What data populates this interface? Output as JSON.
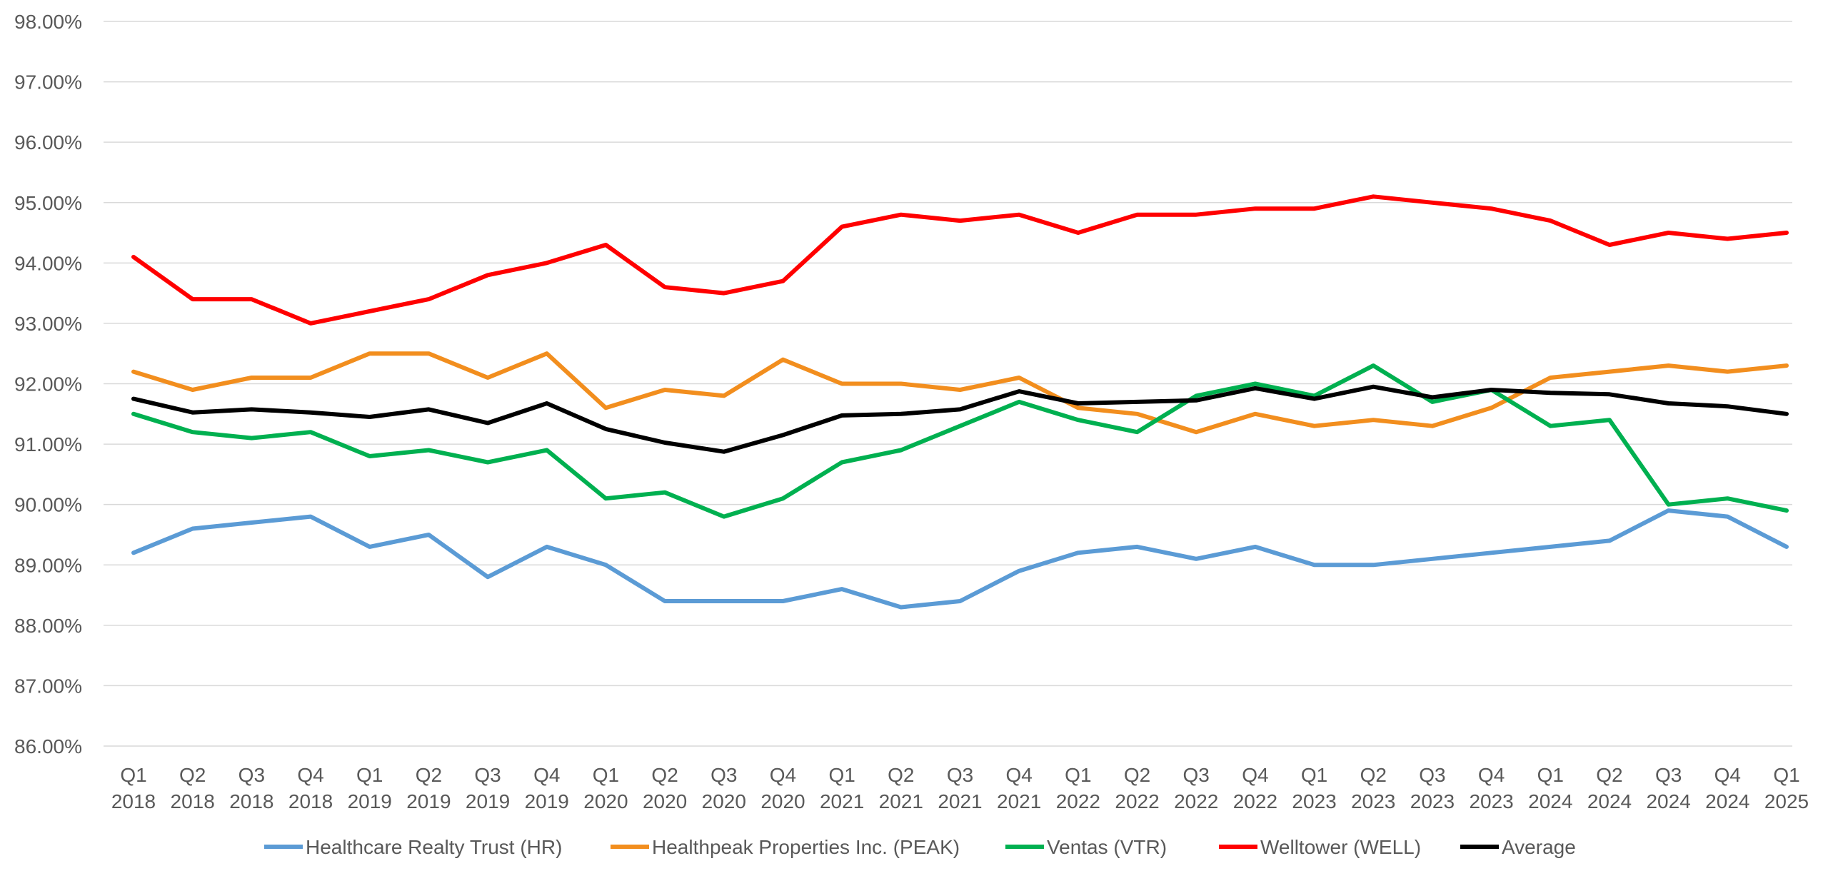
{
  "chart_data": {
    "type": "line",
    "title": "",
    "xlabel": "",
    "ylabel": "",
    "ylim": [
      86.0,
      98.0
    ],
    "y_ticks": [
      "86.00%",
      "87.00%",
      "88.00%",
      "89.00%",
      "90.00%",
      "91.00%",
      "92.00%",
      "93.00%",
      "94.00%",
      "95.00%",
      "96.00%",
      "97.00%",
      "98.00%"
    ],
    "grid": true,
    "legend_position": "bottom",
    "categories": [
      {
        "quarter": "Q1",
        "year": "2018"
      },
      {
        "quarter": "Q2",
        "year": "2018"
      },
      {
        "quarter": "Q3",
        "year": "2018"
      },
      {
        "quarter": "Q4",
        "year": "2018"
      },
      {
        "quarter": "Q1",
        "year": "2019"
      },
      {
        "quarter": "Q2",
        "year": "2019"
      },
      {
        "quarter": "Q3",
        "year": "2019"
      },
      {
        "quarter": "Q4",
        "year": "2019"
      },
      {
        "quarter": "Q1",
        "year": "2020"
      },
      {
        "quarter": "Q2",
        "year": "2020"
      },
      {
        "quarter": "Q3",
        "year": "2020"
      },
      {
        "quarter": "Q4",
        "year": "2020"
      },
      {
        "quarter": "Q1",
        "year": "2021"
      },
      {
        "quarter": "Q2",
        "year": "2021"
      },
      {
        "quarter": "Q3",
        "year": "2021"
      },
      {
        "quarter": "Q4",
        "year": "2021"
      },
      {
        "quarter": "Q1",
        "year": "2022"
      },
      {
        "quarter": "Q2",
        "year": "2022"
      },
      {
        "quarter": "Q3",
        "year": "2022"
      },
      {
        "quarter": "Q4",
        "year": "2022"
      },
      {
        "quarter": "Q1",
        "year": "2023"
      },
      {
        "quarter": "Q2",
        "year": "2023"
      },
      {
        "quarter": "Q3",
        "year": "2023"
      },
      {
        "quarter": "Q4",
        "year": "2023"
      },
      {
        "quarter": "Q1",
        "year": "2024"
      },
      {
        "quarter": "Q2",
        "year": "2024"
      },
      {
        "quarter": "Q3",
        "year": "2024"
      },
      {
        "quarter": "Q4",
        "year": "2024"
      },
      {
        "quarter": "Q1",
        "year": "2025"
      }
    ],
    "series": [
      {
        "name": "Healthcare Realty Trust (HR)",
        "color": "#5b9bd5",
        "values": [
          89.2,
          89.6,
          89.7,
          89.8,
          89.3,
          89.5,
          88.8,
          89.3,
          89.0,
          88.4,
          88.4,
          88.4,
          88.6,
          88.3,
          88.4,
          88.9,
          89.2,
          89.3,
          89.1,
          89.3,
          89.0,
          89.0,
          89.1,
          89.2,
          89.3,
          89.4,
          89.9,
          89.8,
          89.3
        ]
      },
      {
        "name": "Healthpeak Properties Inc. (PEAK)",
        "color": "#f28e1e",
        "values": [
          92.2,
          91.9,
          92.1,
          92.1,
          92.5,
          92.5,
          92.1,
          92.5,
          91.6,
          91.9,
          91.8,
          92.4,
          92.0,
          92.0,
          91.9,
          92.1,
          91.6,
          91.5,
          91.2,
          91.5,
          91.3,
          91.4,
          91.3,
          91.6,
          92.1,
          92.2,
          92.3,
          92.2,
          92.3
        ]
      },
      {
        "name": "Ventas (VTR)",
        "color": "#00b050",
        "values": [
          91.5,
          91.2,
          91.1,
          91.2,
          90.8,
          90.9,
          90.7,
          90.9,
          90.1,
          90.2,
          89.8,
          90.1,
          90.7,
          90.9,
          91.3,
          91.7,
          91.4,
          91.2,
          91.8,
          92.0,
          91.8,
          92.3,
          91.7,
          91.9,
          91.3,
          91.4,
          90.0,
          90.1,
          89.9
        ]
      },
      {
        "name": "Welltower (WELL)",
        "color": "#ff0000",
        "values": [
          94.1,
          93.4,
          93.4,
          93.0,
          93.2,
          93.4,
          93.8,
          94.0,
          94.3,
          93.6,
          93.5,
          93.7,
          94.6,
          94.8,
          94.7,
          94.8,
          94.5,
          94.8,
          94.8,
          94.9,
          94.9,
          95.1,
          95.0,
          94.9,
          94.7,
          94.3,
          94.5,
          94.4,
          94.5
        ]
      },
      {
        "name": "Average",
        "color": "#000000",
        "values": [
          91.75,
          91.525,
          91.575,
          91.525,
          91.45,
          91.575,
          91.35,
          91.675,
          91.25,
          91.025,
          90.875,
          91.15,
          91.475,
          91.5,
          91.575,
          91.875,
          91.675,
          91.7,
          91.725,
          91.925,
          91.75,
          91.95,
          91.775,
          91.9,
          91.85,
          91.825,
          91.675,
          91.625,
          91.5
        ]
      }
    ]
  }
}
